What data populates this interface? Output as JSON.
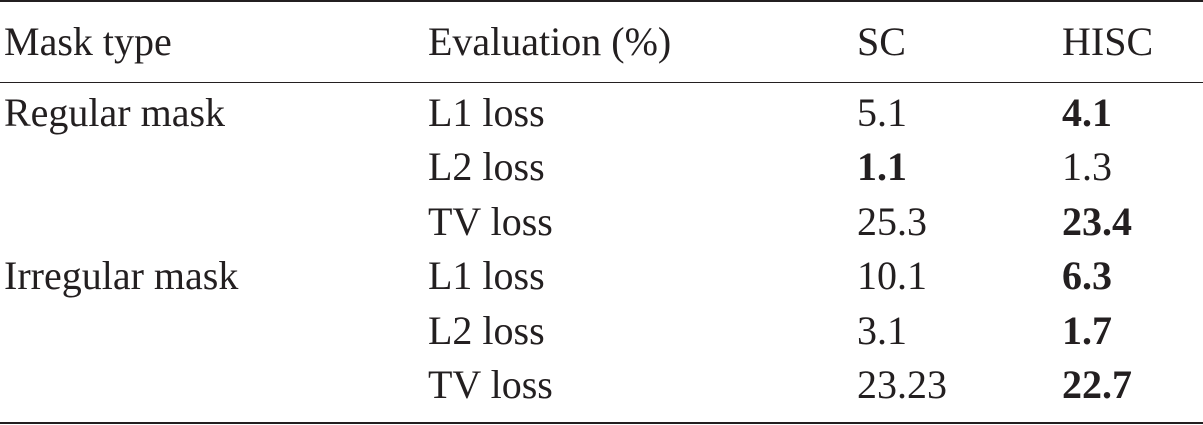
{
  "table": {
    "header": [
      "Mask type",
      "Evaluation (%)",
      "SC",
      "HISC"
    ],
    "groups": [
      {
        "mask_type": "Regular mask",
        "rows": [
          [
            "L1 loss",
            "5.1",
            "4.1"
          ],
          [
            "L2 loss",
            "1.1",
            "1.3"
          ],
          [
            "TV loss",
            "25.3",
            "23.4"
          ]
        ],
        "bold": [
          [
            0,
            2
          ],
          [
            1,
            1
          ],
          [
            2,
            2
          ]
        ]
      },
      {
        "mask_type": "Irregular mask",
        "rows": [
          [
            "L1 loss",
            "10.1",
            "6.3"
          ],
          [
            "L2 loss",
            "3.1",
            "1.7"
          ],
          [
            "TV loss",
            "23.23",
            "22.7"
          ]
        ],
        "bold": [
          [
            0,
            2
          ],
          [
            1,
            2
          ],
          [
            2,
            2
          ]
        ]
      }
    ]
  }
}
